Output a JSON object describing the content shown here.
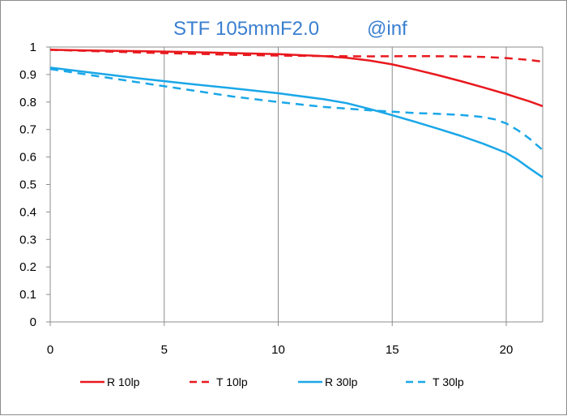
{
  "chart_data": {
    "type": "line",
    "title": "STF 105mmF2.0 @inf",
    "title_parts": [
      "STF 105mmF2.0",
      "@inf"
    ],
    "xlabel": "",
    "ylabel": "",
    "xlim": [
      0,
      21.6
    ],
    "ylim": [
      0,
      1
    ],
    "x_ticks": [
      0,
      5,
      10,
      15,
      20
    ],
    "x_tick_labels": [
      "0",
      "5",
      "10",
      "15",
      "20"
    ],
    "y_ticks": [
      0,
      0.1,
      0.2,
      0.3,
      0.4,
      0.5,
      0.6,
      0.7,
      0.8,
      0.9,
      1
    ],
    "y_tick_labels": [
      "0",
      "0.1",
      "0.2",
      "0.3",
      "0.4",
      "0.5",
      "0.6",
      "0.7",
      "0.8",
      "0.9",
      "1"
    ],
    "grid": "vertical",
    "legend_position": "bottom",
    "series": [
      {
        "name": "R 10lp",
        "color": "#e8191e",
        "dash": "solid",
        "x": [
          0,
          2,
          4,
          6,
          8,
          10,
          12,
          13,
          14,
          15,
          16,
          17,
          18,
          19,
          20,
          21,
          21.6
        ],
        "y": [
          0.99,
          0.987,
          0.985,
          0.982,
          0.978,
          0.974,
          0.967,
          0.961,
          0.951,
          0.937,
          0.918,
          0.898,
          0.876,
          0.853,
          0.829,
          0.803,
          0.785
        ]
      },
      {
        "name": "T 10lp",
        "color": "#e8191e",
        "dash": "dashed",
        "x": [
          0,
          2,
          4,
          6,
          8,
          10,
          12,
          14,
          16,
          18,
          19,
          20,
          21,
          21.6
        ],
        "y": [
          0.99,
          0.985,
          0.98,
          0.976,
          0.972,
          0.969,
          0.967,
          0.966,
          0.967,
          0.966,
          0.964,
          0.96,
          0.953,
          0.947
        ]
      },
      {
        "name": "R 30lp",
        "color": "#1aa7e8",
        "dash": "solid",
        "x": [
          0,
          2,
          4,
          6,
          8,
          10,
          12,
          13,
          14,
          15,
          16,
          17,
          18,
          19,
          20,
          20.5,
          21,
          21.6
        ],
        "y": [
          0.925,
          0.905,
          0.885,
          0.867,
          0.85,
          0.832,
          0.81,
          0.796,
          0.775,
          0.752,
          0.728,
          0.703,
          0.677,
          0.648,
          0.615,
          0.59,
          0.56,
          0.526
        ]
      },
      {
        "name": "T 30lp",
        "color": "#1aa7e8",
        "dash": "dashed",
        "x": [
          0,
          2,
          4,
          6,
          8,
          10,
          12,
          14,
          16,
          17,
          18,
          19,
          19.5,
          20,
          20.5,
          21,
          21.6
        ],
        "y": [
          0.92,
          0.895,
          0.87,
          0.845,
          0.82,
          0.8,
          0.782,
          0.77,
          0.76,
          0.757,
          0.753,
          0.745,
          0.737,
          0.722,
          0.698,
          0.668,
          0.625
        ]
      }
    ]
  }
}
